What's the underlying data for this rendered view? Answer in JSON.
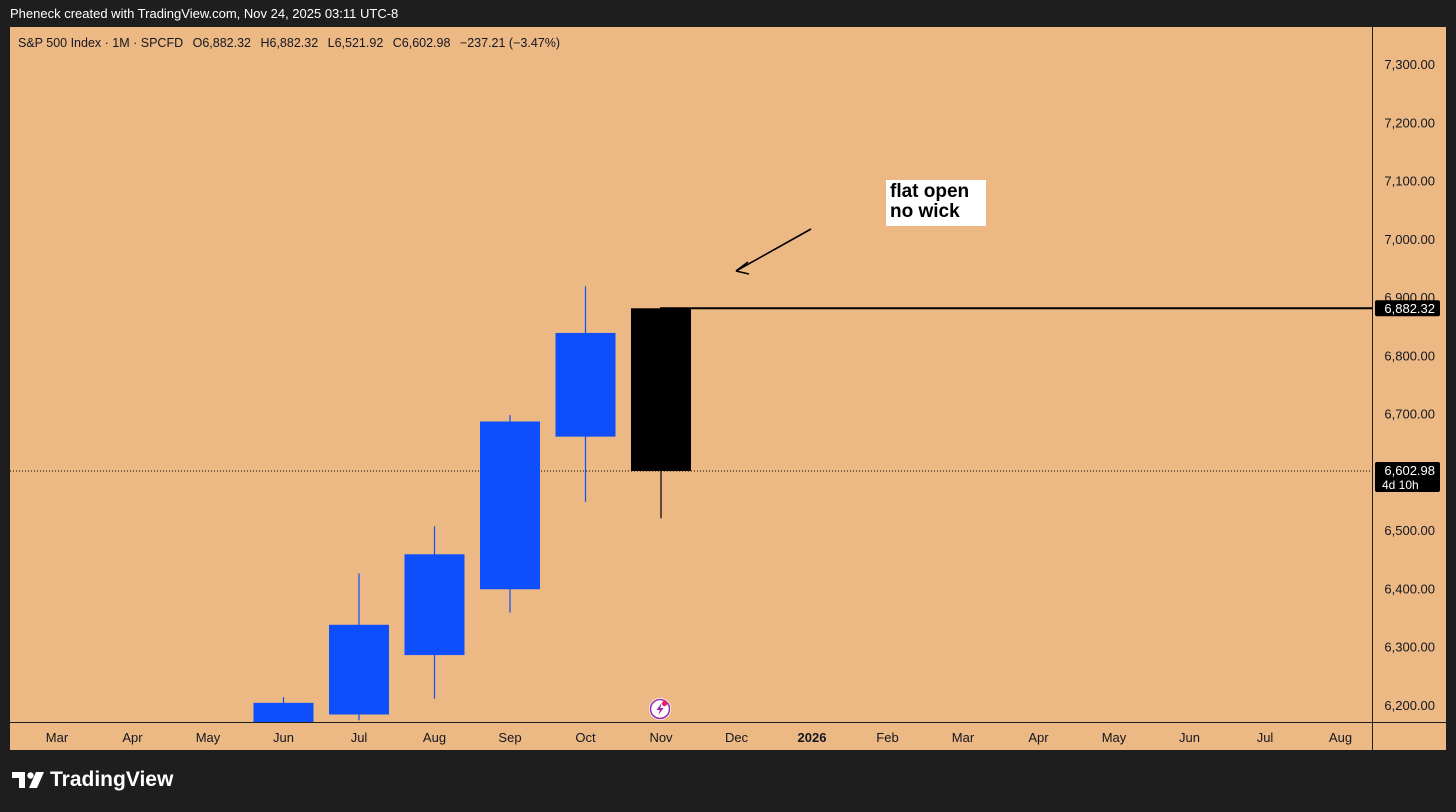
{
  "header": {
    "created_by": "Pheneck created with TradingView.com, Nov 24, 2025 03:11 UTC-8"
  },
  "legend": {
    "symbol": "S&P 500 Index · 1M · SPCFD",
    "open": "O6,882.32",
    "high": "H6,882.32",
    "low": "L6,521.92",
    "close": "C6,602.98",
    "change": "−237.21 (−3.47%)"
  },
  "annotation": {
    "line1": "flat open",
    "line2": "no wick"
  },
  "price_labels": {
    "open_line": "6,882.32",
    "last": "6,602.98",
    "countdown": "4d 10h"
  },
  "footer": {
    "brand": "TradingView"
  },
  "colors": {
    "background": "#ecb883",
    "up": "#0f4ffb",
    "down": "#000000",
    "frame": "#1e1e1e"
  },
  "chart_data": {
    "type": "candlestick",
    "interval": "1M",
    "y_axis": {
      "ticks": [
        "7,300.00",
        "7,200.00",
        "7,100.00",
        "7,000.00",
        "6,900.00",
        "6,800.00",
        "6,700.00",
        "6,600.00",
        "6,500.00",
        "6,400.00",
        "6,300.00",
        "6,200.00"
      ],
      "tick_values": [
        7300,
        7200,
        7100,
        7000,
        6900,
        6800,
        6700,
        6600,
        6500,
        6400,
        6300,
        6200
      ],
      "range": [
        6168,
        7355
      ]
    },
    "x_axis": {
      "ticks": [
        "Mar",
        "Apr",
        "May",
        "Jun",
        "Jul",
        "Aug",
        "Sep",
        "Oct",
        "Nov",
        "Dec",
        "2026",
        "Feb",
        "Mar",
        "Apr",
        "May",
        "Jun",
        "Jul",
        "Aug"
      ]
    },
    "candles": [
      {
        "month": "Jun",
        "open": 6170,
        "high": 6215,
        "low": 6168,
        "close": 6205
      },
      {
        "month": "Jul",
        "open": 6185,
        "high": 6427,
        "low": 6175,
        "close": 6339
      },
      {
        "month": "Aug",
        "open": 6287,
        "high": 6508,
        "low": 6212,
        "close": 6460
      },
      {
        "month": "Sep",
        "open": 6400,
        "high": 6699,
        "low": 6360,
        "close": 6688
      },
      {
        "month": "Oct",
        "open": 6662,
        "high": 6920,
        "low": 6550,
        "close": 6840
      },
      {
        "month": "Nov",
        "open": 6882.32,
        "high": 6882.32,
        "low": 6521.92,
        "close": 6602.98
      }
    ],
    "horizontal_line": 6882.32,
    "last_price_line": 6602.98
  }
}
